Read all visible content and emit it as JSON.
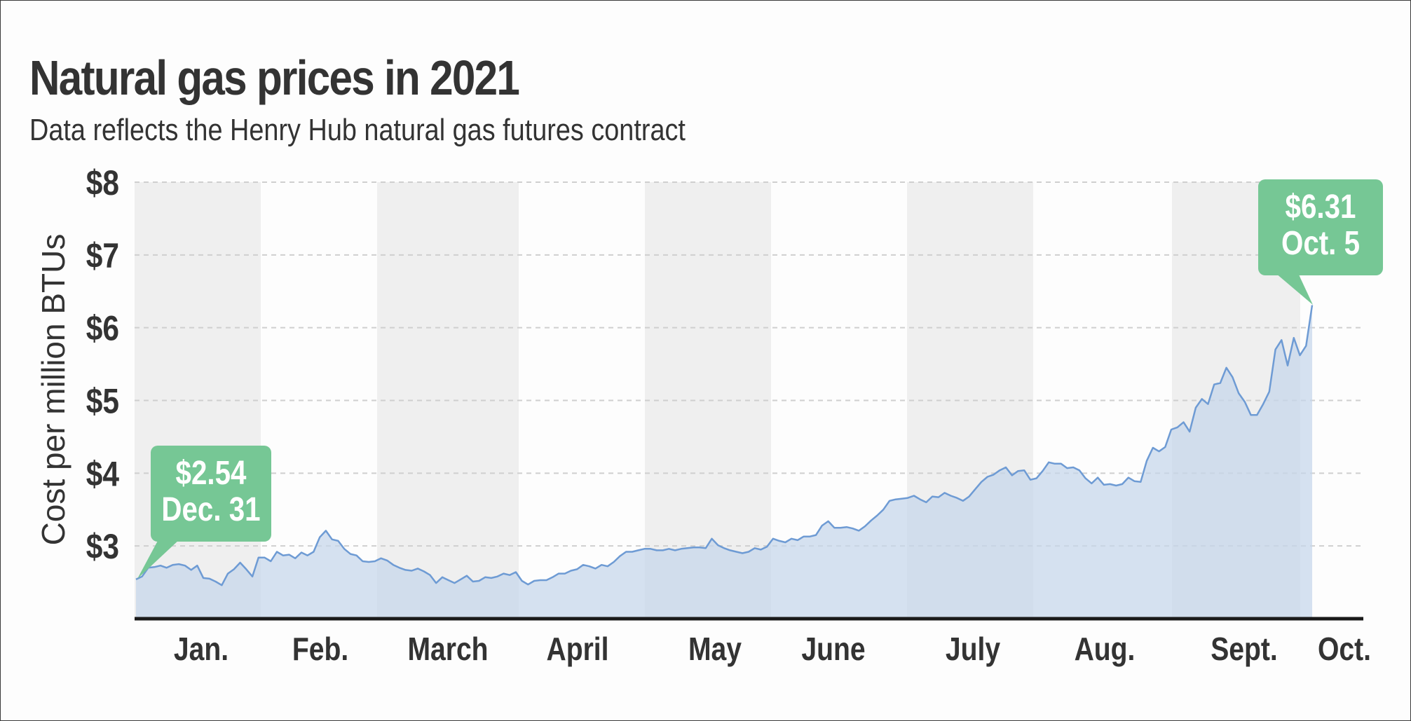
{
  "chart_data": {
    "type": "area",
    "title": "Natural gas prices in 2021",
    "subtitle": "Data reflects the Henry Hub natural gas futures contract",
    "xlabel": "",
    "ylabel": "Cost per million BTUs",
    "y_ticks": [
      "$3",
      "$4",
      "$5",
      "$6",
      "$7",
      "$8"
    ],
    "ylim": [
      2,
      8
    ],
    "x_ticks": [
      "Jan.",
      "Feb.",
      "March",
      "April",
      "May",
      "June",
      "July",
      "Aug.",
      "Sept.",
      "Oct."
    ],
    "grid": "horizontal dashed",
    "line_color": "#6e9bd4",
    "fill_color": "#c5d6ea",
    "band_color": "#efefef",
    "callout_color": "#76c795",
    "values": [
      2.54,
      2.58,
      2.7,
      2.71,
      2.73,
      2.7,
      2.74,
      2.75,
      2.73,
      2.67,
      2.73,
      2.56,
      2.55,
      2.51,
      2.46,
      2.62,
      2.68,
      2.77,
      2.68,
      2.58,
      2.84,
      2.84,
      2.79,
      2.92,
      2.87,
      2.88,
      2.83,
      2.91,
      2.87,
      2.92,
      3.12,
      3.21,
      3.09,
      3.07,
      2.96,
      2.89,
      2.87,
      2.79,
      2.78,
      2.79,
      2.83,
      2.8,
      2.74,
      2.7,
      2.67,
      2.66,
      2.69,
      2.65,
      2.6,
      2.49,
      2.57,
      2.53,
      2.49,
      2.54,
      2.59,
      2.51,
      2.52,
      2.57,
      2.56,
      2.58,
      2.62,
      2.6,
      2.64,
      2.52,
      2.47,
      2.52,
      2.53,
      2.53,
      2.57,
      2.62,
      2.62,
      2.66,
      2.68,
      2.74,
      2.72,
      2.69,
      2.74,
      2.72,
      2.78,
      2.86,
      2.92,
      2.92,
      2.94,
      2.96,
      2.96,
      2.94,
      2.94,
      2.96,
      2.94,
      2.96,
      2.97,
      2.98,
      2.98,
      2.97,
      3.1,
      3.01,
      2.97,
      2.94,
      2.92,
      2.9,
      2.92,
      2.97,
      2.95,
      2.99,
      3.1,
      3.07,
      3.05,
      3.1,
      3.08,
      3.13,
      3.13,
      3.15,
      3.28,
      3.34,
      3.25,
      3.25,
      3.26,
      3.24,
      3.21,
      3.27,
      3.35,
      3.42,
      3.5,
      3.62,
      3.64,
      3.65,
      3.66,
      3.69,
      3.64,
      3.6,
      3.68,
      3.67,
      3.73,
      3.69,
      3.66,
      3.62,
      3.68,
      3.78,
      3.88,
      3.95,
      3.98,
      4.04,
      4.08,
      3.97,
      4.03,
      4.04,
      3.91,
      3.93,
      4.03,
      4.15,
      4.13,
      4.13,
      4.07,
      4.08,
      4.04,
      3.93,
      3.86,
      3.94,
      3.84,
      3.85,
      3.83,
      3.85,
      3.94,
      3.89,
      3.88,
      4.17,
      4.35,
      4.3,
      4.36,
      4.6,
      4.63,
      4.7,
      4.57,
      4.9,
      5.02,
      4.95,
      5.22,
      5.24,
      5.45,
      5.32,
      5.1,
      4.98,
      4.8,
      4.8,
      4.95,
      5.12,
      5.7,
      5.83,
      5.48,
      5.86,
      5.62,
      5.75,
      6.31
    ],
    "annotations": [
      {
        "value": "$2.54",
        "date": "Dec. 31"
      },
      {
        "value": "$6.31",
        "date": "Oct. 5"
      }
    ]
  }
}
